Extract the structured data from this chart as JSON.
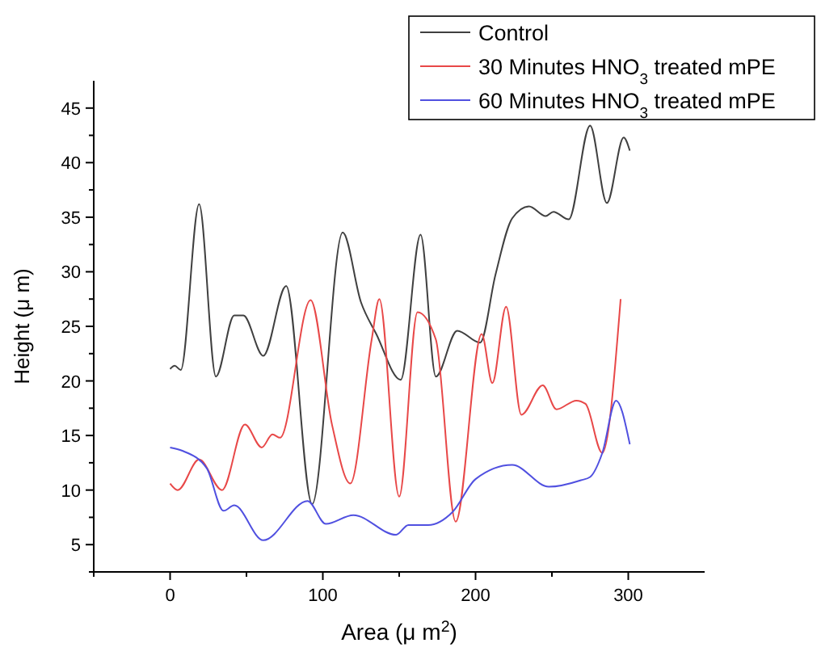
{
  "chart_data": {
    "type": "line",
    "xlabel": "Area (μ m$^{2}$)",
    "ylabel": "Height (μ m)",
    "xlim": [
      -50,
      350
    ],
    "xticks": [
      {
        "value": -50,
        "label": null
      },
      0,
      {
        "value": 50,
        "label": null
      },
      100,
      {
        "value": 150,
        "label": null
      },
      200,
      {
        "value": 250,
        "label": null
      },
      300
    ],
    "ylim": [
      2.5,
      47.5
    ],
    "yticks": [
      {
        "value": 2.5,
        "label": null
      },
      5,
      {
        "value": 7.5,
        "label": null
      },
      10,
      {
        "value": 12.5,
        "label": null
      },
      15,
      {
        "value": 17.5,
        "label": null
      },
      20,
      {
        "value": 22.5,
        "label": null
      },
      25,
      {
        "value": 27.5,
        "label": null
      },
      30,
      {
        "value": 32.5,
        "label": null
      },
      35,
      {
        "value": 37.5,
        "label": null
      },
      40,
      {
        "value": 42.5,
        "label": null
      },
      45
    ],
    "grid": false,
    "legend": "top right",
    "marker": "none",
    "line_style": "solid",
    "series": [
      {
        "name": "Control",
        "color": "#404040",
        "x": [
          0,
          3,
          7,
          19,
          30,
          42,
          48,
          61,
          76,
          93,
          113,
          125,
          135,
          151,
          164,
          174,
          188,
          203,
          213,
          224,
          235,
          246,
          251,
          261,
          275,
          286,
          297,
          301
        ],
        "values": [
          21.1,
          21.4,
          21,
          36.2,
          20.4,
          26,
          26,
          22.3,
          28.7,
          8.7,
          33.6,
          27.2,
          24.3,
          20.1,
          33.4,
          20.4,
          24.6,
          23.5,
          29.7,
          34.9,
          36,
          35.1,
          35.5,
          34.8,
          43.4,
          36.3,
          42.3,
          41.1
        ]
      },
      {
        "name": "30 Minutes HNO$_{3}$ treated mPE",
        "color": "#e84848",
        "x": [
          0,
          5,
          19,
          34,
          49,
          60,
          67,
          72,
          92,
          106,
          118,
          132,
          137,
          150,
          162,
          174,
          187,
          204,
          211,
          220,
          230,
          244,
          253,
          266,
          272,
          283,
          295
        ],
        "values": [
          10.6,
          10,
          12.8,
          10,
          16,
          13.9,
          15.1,
          14.8,
          27.4,
          16,
          10.6,
          23.8,
          27.5,
          9.4,
          26.3,
          23.8,
          7.1,
          24.3,
          19.8,
          26.8,
          16.9,
          19.6,
          17.4,
          18.2,
          17.9,
          13.4,
          27.5
        ]
      },
      {
        "name": "60 Minutes HNO$_{3}$ treated mPE",
        "color": "#5050e0",
        "x": [
          0,
          8,
          24,
          35,
          42,
          61,
          90,
          102,
          120,
          148,
          156,
          169,
          185,
          200,
          224,
          248,
          269,
          275,
          283,
          292,
          301
        ],
        "values": [
          13.9,
          13.6,
          12,
          8.1,
          8.6,
          5.4,
          9,
          6.9,
          7.7,
          5.9,
          6.8,
          6.8,
          8,
          11,
          12.3,
          10.3,
          10.9,
          11.2,
          13.4,
          18.2,
          14.2
        ]
      }
    ]
  }
}
